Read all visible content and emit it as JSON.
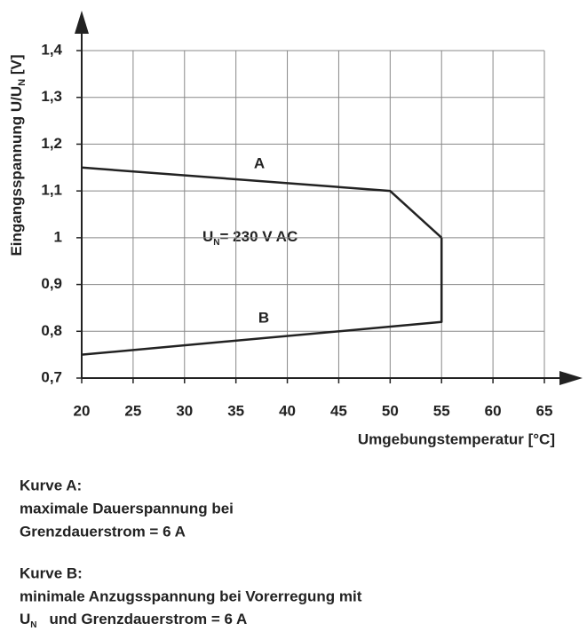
{
  "chart_data": {
    "type": "line",
    "y_label": [
      "Eingangsspannung U/U",
      "N",
      " [V]"
    ],
    "x_label": "Umgebungstemperatur [°C]",
    "annotation": [
      "U",
      "N",
      "= 230 V AC"
    ],
    "xlim": [
      20,
      65
    ],
    "xticks": [
      20,
      25,
      30,
      35,
      40,
      45,
      50,
      55,
      60,
      65
    ],
    "ylim": [
      0.7,
      1.4
    ],
    "yticks": [
      {
        "value": 0.7,
        "label": "0,7"
      },
      {
        "value": 0.8,
        "label": "0,8"
      },
      {
        "value": 0.9,
        "label": "0,9"
      },
      1,
      {
        "value": 1.1,
        "label": "1,1"
      },
      {
        "value": 1.2,
        "label": "1,2"
      },
      {
        "value": 1.3,
        "label": "1,3"
      },
      {
        "value": 1.4,
        "label": "1,4"
      }
    ],
    "grid": true,
    "series": [
      {
        "name": "A",
        "color": "#222222",
        "x": [
          20,
          50,
          55
        ],
        "values": [
          1.15,
          1.1,
          1.0
        ]
      },
      {
        "name": "B",
        "color": "#222222",
        "x": [
          20,
          55,
          55
        ],
        "values": [
          0.75,
          0.82,
          1.0
        ]
      }
    ],
    "notes": {
      "a": [
        "Kurve A:",
        "maximale Dauerspannung bei",
        "Grenzdauerstrom = 6 A"
      ],
      "b": [
        "Kurve B:",
        "minimale Anzugsspannung bei Vorerregung mit",
        "U",
        "N",
        "und Grenzdauerstrom = 6 A"
      ]
    }
  }
}
